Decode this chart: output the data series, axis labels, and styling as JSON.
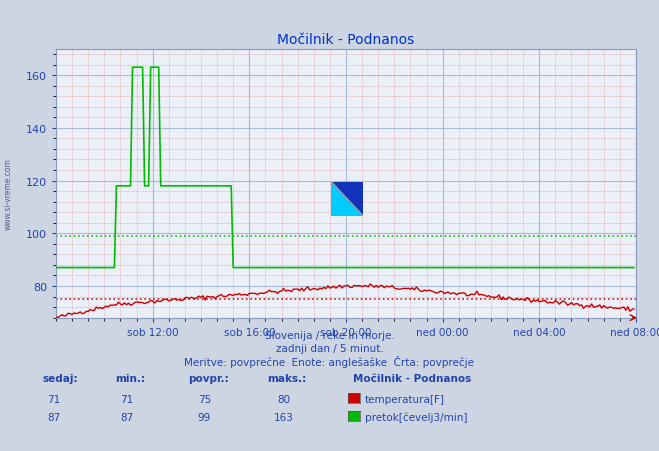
{
  "title": "Močilnik - Podnanos",
  "bg_color": "#cdd5e3",
  "plot_bg_color": "#eaeff8",
  "xlabel_ticks": [
    "sob 12:00",
    "sob 16:00",
    "sob 20:00",
    "ned 00:00",
    "ned 04:00",
    "ned 08:00"
  ],
  "xlim": [
    0,
    288
  ],
  "ylim": [
    68,
    170
  ],
  "yticks": [
    80,
    100,
    120,
    140,
    160
  ],
  "footer_lines": [
    "Slovenija / reke in morje.",
    "zadnji dan / 5 minut.",
    "Meritve: povprečne  Enote: anglešaške  Črta: povprečje"
  ],
  "temperature_color": "#cc0000",
  "flow_color": "#00bb00",
  "temp_avg": 75,
  "flow_avg": 99,
  "table_header": "Močilnik - Podnanos",
  "temp_sedaj": "71",
  "temp_min": "71",
  "temp_povpr": "75",
  "temp_maks": "80",
  "flow_sedaj": "87",
  "flow_min": "87",
  "flow_povpr": "99",
  "flow_maks": "163",
  "temp_name": "temperatura[F]",
  "flow_name": "pretok[čevelj3/min]",
  "watermark_text": "www.si-vreme.com",
  "sidebar_text": "www.si-vreme.com",
  "text_color": "#2244aa",
  "title_color": "#0033cc"
}
